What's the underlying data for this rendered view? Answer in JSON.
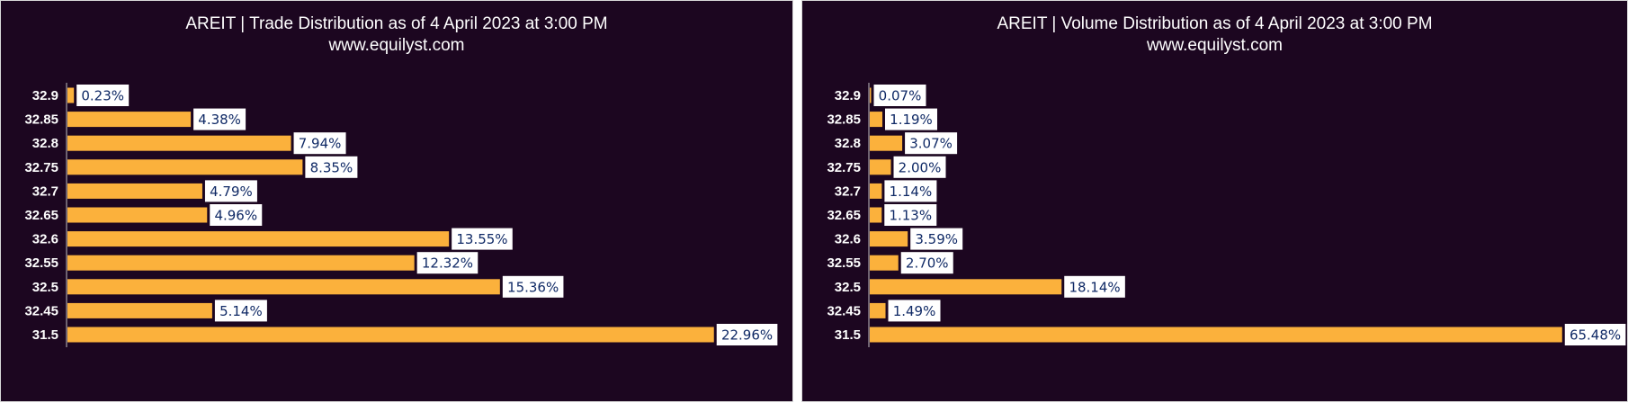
{
  "colors": {
    "background": "#1c0620",
    "bar": "#fbb13c",
    "label_box": "#ffffff",
    "label_text": "#102a66",
    "axis": "#bfbfbf"
  },
  "chart_data": [
    {
      "type": "bar",
      "orientation": "horizontal",
      "title": "AREIT | Trade Distribution as of 4 April 2023 at 3:00 PM",
      "subtitle": "www.equilyst.com",
      "categories": [
        "32.9",
        "32.85",
        "32.8",
        "32.75",
        "32.7",
        "32.65",
        "32.6",
        "32.55",
        "32.5",
        "32.45",
        "31.5"
      ],
      "values": [
        0.23,
        4.38,
        7.94,
        8.35,
        4.79,
        4.96,
        13.55,
        12.32,
        15.36,
        5.14,
        22.96
      ],
      "labels": [
        "0.23%",
        "4.38%",
        "7.94%",
        "8.35%",
        "4.79%",
        "4.96%",
        "13.55%",
        "12.32%",
        "15.36%",
        "5.14%",
        "22.96%"
      ],
      "xlim": [
        0,
        23
      ],
      "grid": false,
      "legend": "none"
    },
    {
      "type": "bar",
      "orientation": "horizontal",
      "title": "AREIT | Volume Distribution as of 4 April 2023 at 3:00 PM",
      "subtitle": "www.equilyst.com",
      "categories": [
        "32.9",
        "32.85",
        "32.8",
        "32.75",
        "32.7",
        "32.65",
        "32.6",
        "32.55",
        "32.5",
        "32.45",
        "31.5"
      ],
      "values": [
        0.07,
        1.19,
        3.07,
        2.0,
        1.14,
        1.13,
        3.59,
        2.7,
        18.14,
        1.49,
        65.48
      ],
      "labels": [
        "0.07%",
        "1.19%",
        "3.07%",
        "2.00%",
        "1.14%",
        "1.13%",
        "3.59%",
        "2.70%",
        "18.14%",
        "1.49%",
        "65.48%"
      ],
      "xlim": [
        0,
        65.5
      ],
      "grid": false,
      "legend": "none"
    }
  ]
}
